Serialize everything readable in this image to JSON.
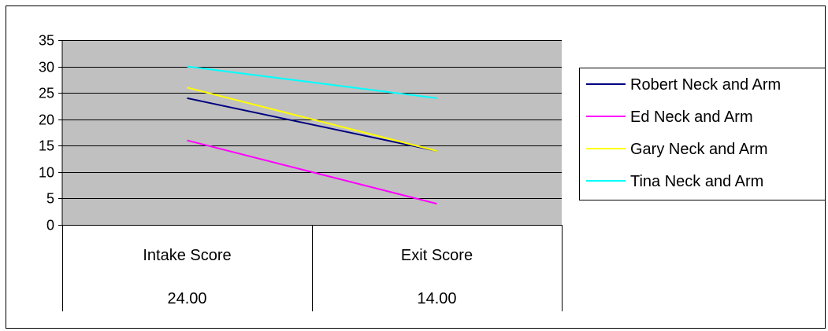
{
  "chart_data": {
    "type": "line",
    "categories": [
      "Intake Score",
      "Exit Score"
    ],
    "table_row": [
      "24.00",
      "14.00"
    ],
    "ylim": [
      0,
      35
    ],
    "yticks": [
      "0",
      "5",
      "10",
      "15",
      "20",
      "25",
      "30",
      "35"
    ],
    "grid": true,
    "legend_position": "right",
    "plot_background": "#c0c0c0",
    "series": [
      {
        "name": "Robert Neck and Arm",
        "color": "#000080",
        "values": [
          24,
          14
        ]
      },
      {
        "name": "Ed Neck and Arm",
        "color": "#ff00ff",
        "values": [
          16,
          4
        ]
      },
      {
        "name": "Gary Neck and Arm",
        "color": "#ffff00",
        "values": [
          26,
          14
        ]
      },
      {
        "name": "Tina Neck and Arm",
        "color": "#00ffff",
        "values": [
          30,
          24
        ]
      }
    ]
  }
}
